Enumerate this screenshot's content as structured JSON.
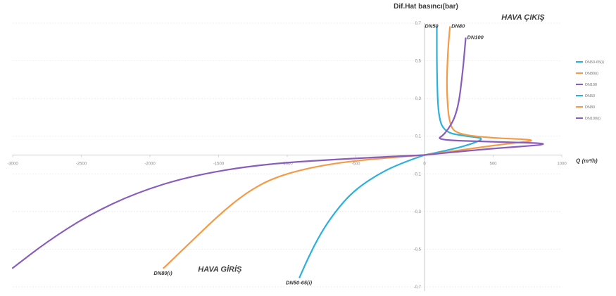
{
  "chart_data": {
    "type": "line",
    "ylabel": "Dif.Hat  basıncı(bar)",
    "xlabel": "Q (m³/h)",
    "xlim": [
      -3000,
      1000
    ],
    "ylim": [
      -0.7,
      0.7
    ],
    "x_ticks": [
      -3000,
      -2500,
      -2000,
      -1500,
      -1000,
      -500,
      0,
      500,
      1000
    ],
    "x_tick_labels": [
      "-3000",
      "-2500",
      "-2000",
      "-1500",
      "-1000",
      "-500",
      "0",
      "500",
      "1000"
    ],
    "y_ticks": [
      0.7,
      0.5,
      0.3,
      0.1,
      -0.1,
      -0.3,
      -0.5,
      -0.7
    ],
    "y_tick_labels": [
      "0,7",
      "0,5",
      "0,3",
      "0,1",
      "-0,1",
      "-0,3",
      "-0,5",
      "-0,7"
    ],
    "grid": "horizontal",
    "legend_position": "right",
    "regions": {
      "outlet": "HAVA ÇIKIŞ",
      "inlet": "HAVA GİRİŞ"
    },
    "colors": {
      "blue": "#2cb0dc",
      "orange": "#f59a45",
      "purple": "#8a5cbc"
    },
    "series": [
      {
        "name": "DN50-65(i)",
        "color": "#2cb0dc",
        "label": "DN50-65(i)",
        "x": [
          0,
          -200,
          -380,
          -530,
          -650,
          -760,
          -850,
          -910
        ],
        "y": [
          0,
          -0.05,
          -0.12,
          -0.2,
          -0.3,
          -0.42,
          -0.55,
          -0.65
        ]
      },
      {
        "name": "DN80(i)",
        "color": "#f59a45",
        "label": "DN80(i)",
        "x": [
          0,
          -400,
          -800,
          -1100,
          -1300,
          -1500,
          -1700,
          -1900
        ],
        "y": [
          0,
          -0.02,
          -0.06,
          -0.12,
          -0.2,
          -0.32,
          -0.46,
          -0.6
        ]
      },
      {
        "name": "DN100",
        "color": "#8a5cbc",
        "label": "",
        "x": [
          0,
          -600,
          -1200,
          -1700,
          -2100,
          -2450,
          -2750,
          -3000
        ],
        "y": [
          0,
          -0.02,
          -0.05,
          -0.11,
          -0.2,
          -0.32,
          -0.46,
          -0.6
        ]
      },
      {
        "name": "DN50",
        "color": "#2cb0dc",
        "label": "DN50",
        "x": [
          0,
          200,
          350,
          440,
          300,
          150,
          100,
          90,
          90
        ],
        "y": [
          0,
          0.03,
          0.06,
          0.09,
          0.1,
          0.12,
          0.2,
          0.45,
          0.68
        ]
      },
      {
        "name": "DN80",
        "color": "#f59a45",
        "label": "DN80",
        "x": [
          0,
          300,
          600,
          850,
          500,
          240,
          180,
          160,
          170,
          185
        ],
        "y": [
          0,
          0.03,
          0.06,
          0.08,
          0.09,
          0.11,
          0.16,
          0.35,
          0.55,
          0.68
        ]
      },
      {
        "name": "DN100(i)",
        "color": "#8a5cbc",
        "label": "DN100",
        "x": [
          0,
          400,
          1000,
          500,
          80,
          150,
          240,
          280,
          300
        ],
        "y": [
          0,
          0.03,
          0.06,
          0.07,
          0.08,
          0.11,
          0.22,
          0.45,
          0.62
        ]
      }
    ]
  }
}
